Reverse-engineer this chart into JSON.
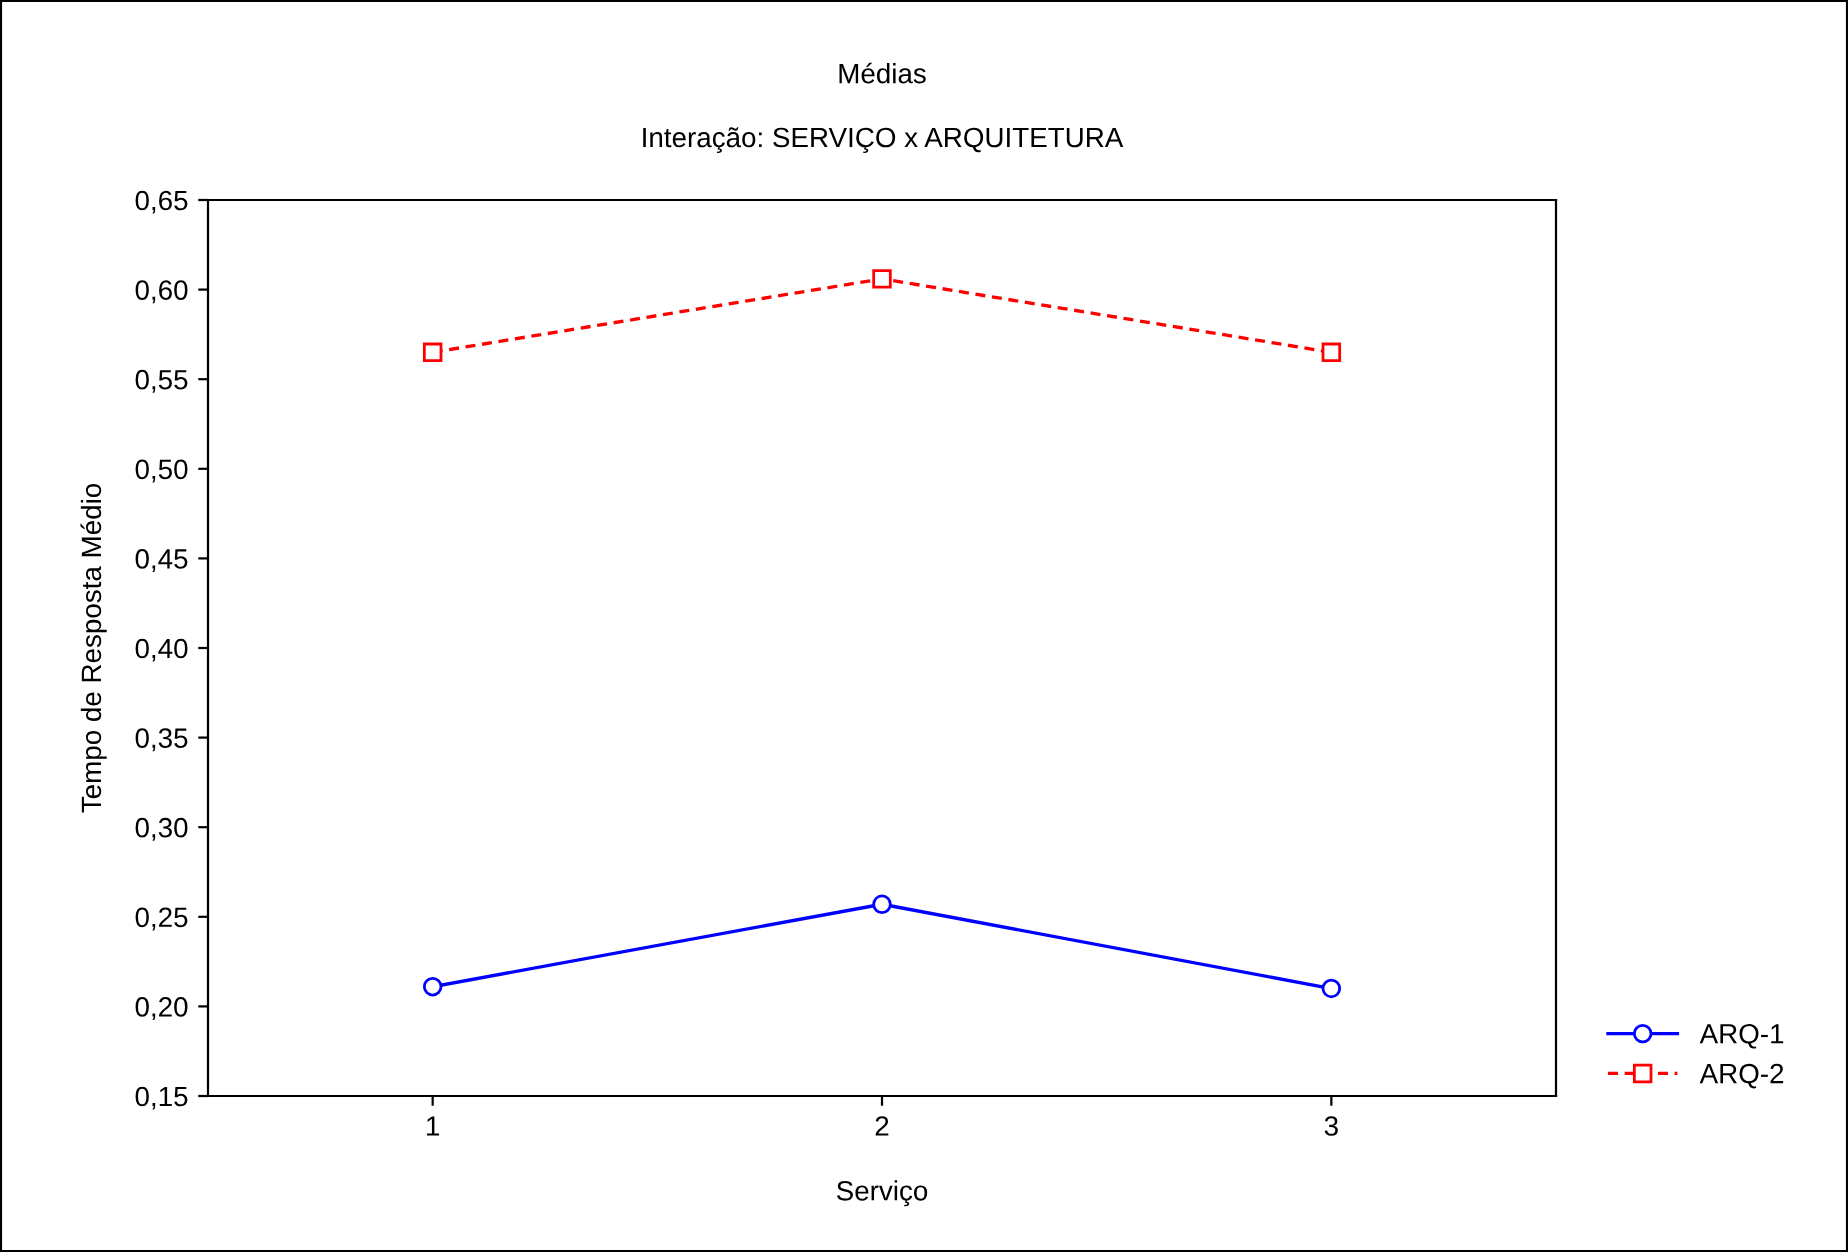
{
  "chart_data": {
    "type": "line",
    "title": "Médias",
    "subtitle": "Interação: SERVIÇO x ARQUITETURA",
    "xlabel": "Serviço",
    "ylabel": "Tempo de Resposta Médio",
    "categories": [
      "1",
      "2",
      "3"
    ],
    "series": [
      {
        "name": "ARQ-1",
        "color": "#0000ff",
        "values": [
          0.211,
          0.257,
          0.21
        ],
        "marker": "circle",
        "line_style": "solid"
      },
      {
        "name": "ARQ-2",
        "color": "#ff0000",
        "values": [
          0.565,
          0.606,
          0.565
        ],
        "marker": "square",
        "line_style": "dashed"
      }
    ],
    "ylim": [
      0.15,
      0.65
    ],
    "yticks": [
      {
        "value": 0.15,
        "label": "0,15"
      },
      {
        "value": 0.2,
        "label": "0,20"
      },
      {
        "value": 0.25,
        "label": "0,25"
      },
      {
        "value": 0.3,
        "label": "0,30"
      },
      {
        "value": 0.35,
        "label": "0,35"
      },
      {
        "value": 0.4,
        "label": "0,40"
      },
      {
        "value": 0.45,
        "label": "0,45"
      },
      {
        "value": 0.5,
        "label": "0,50"
      },
      {
        "value": 0.55,
        "label": "0,55"
      },
      {
        "value": 0.6,
        "label": "0,60"
      },
      {
        "value": 0.65,
        "label": "0,65"
      }
    ],
    "grid": false,
    "legend": "bottom right"
  }
}
